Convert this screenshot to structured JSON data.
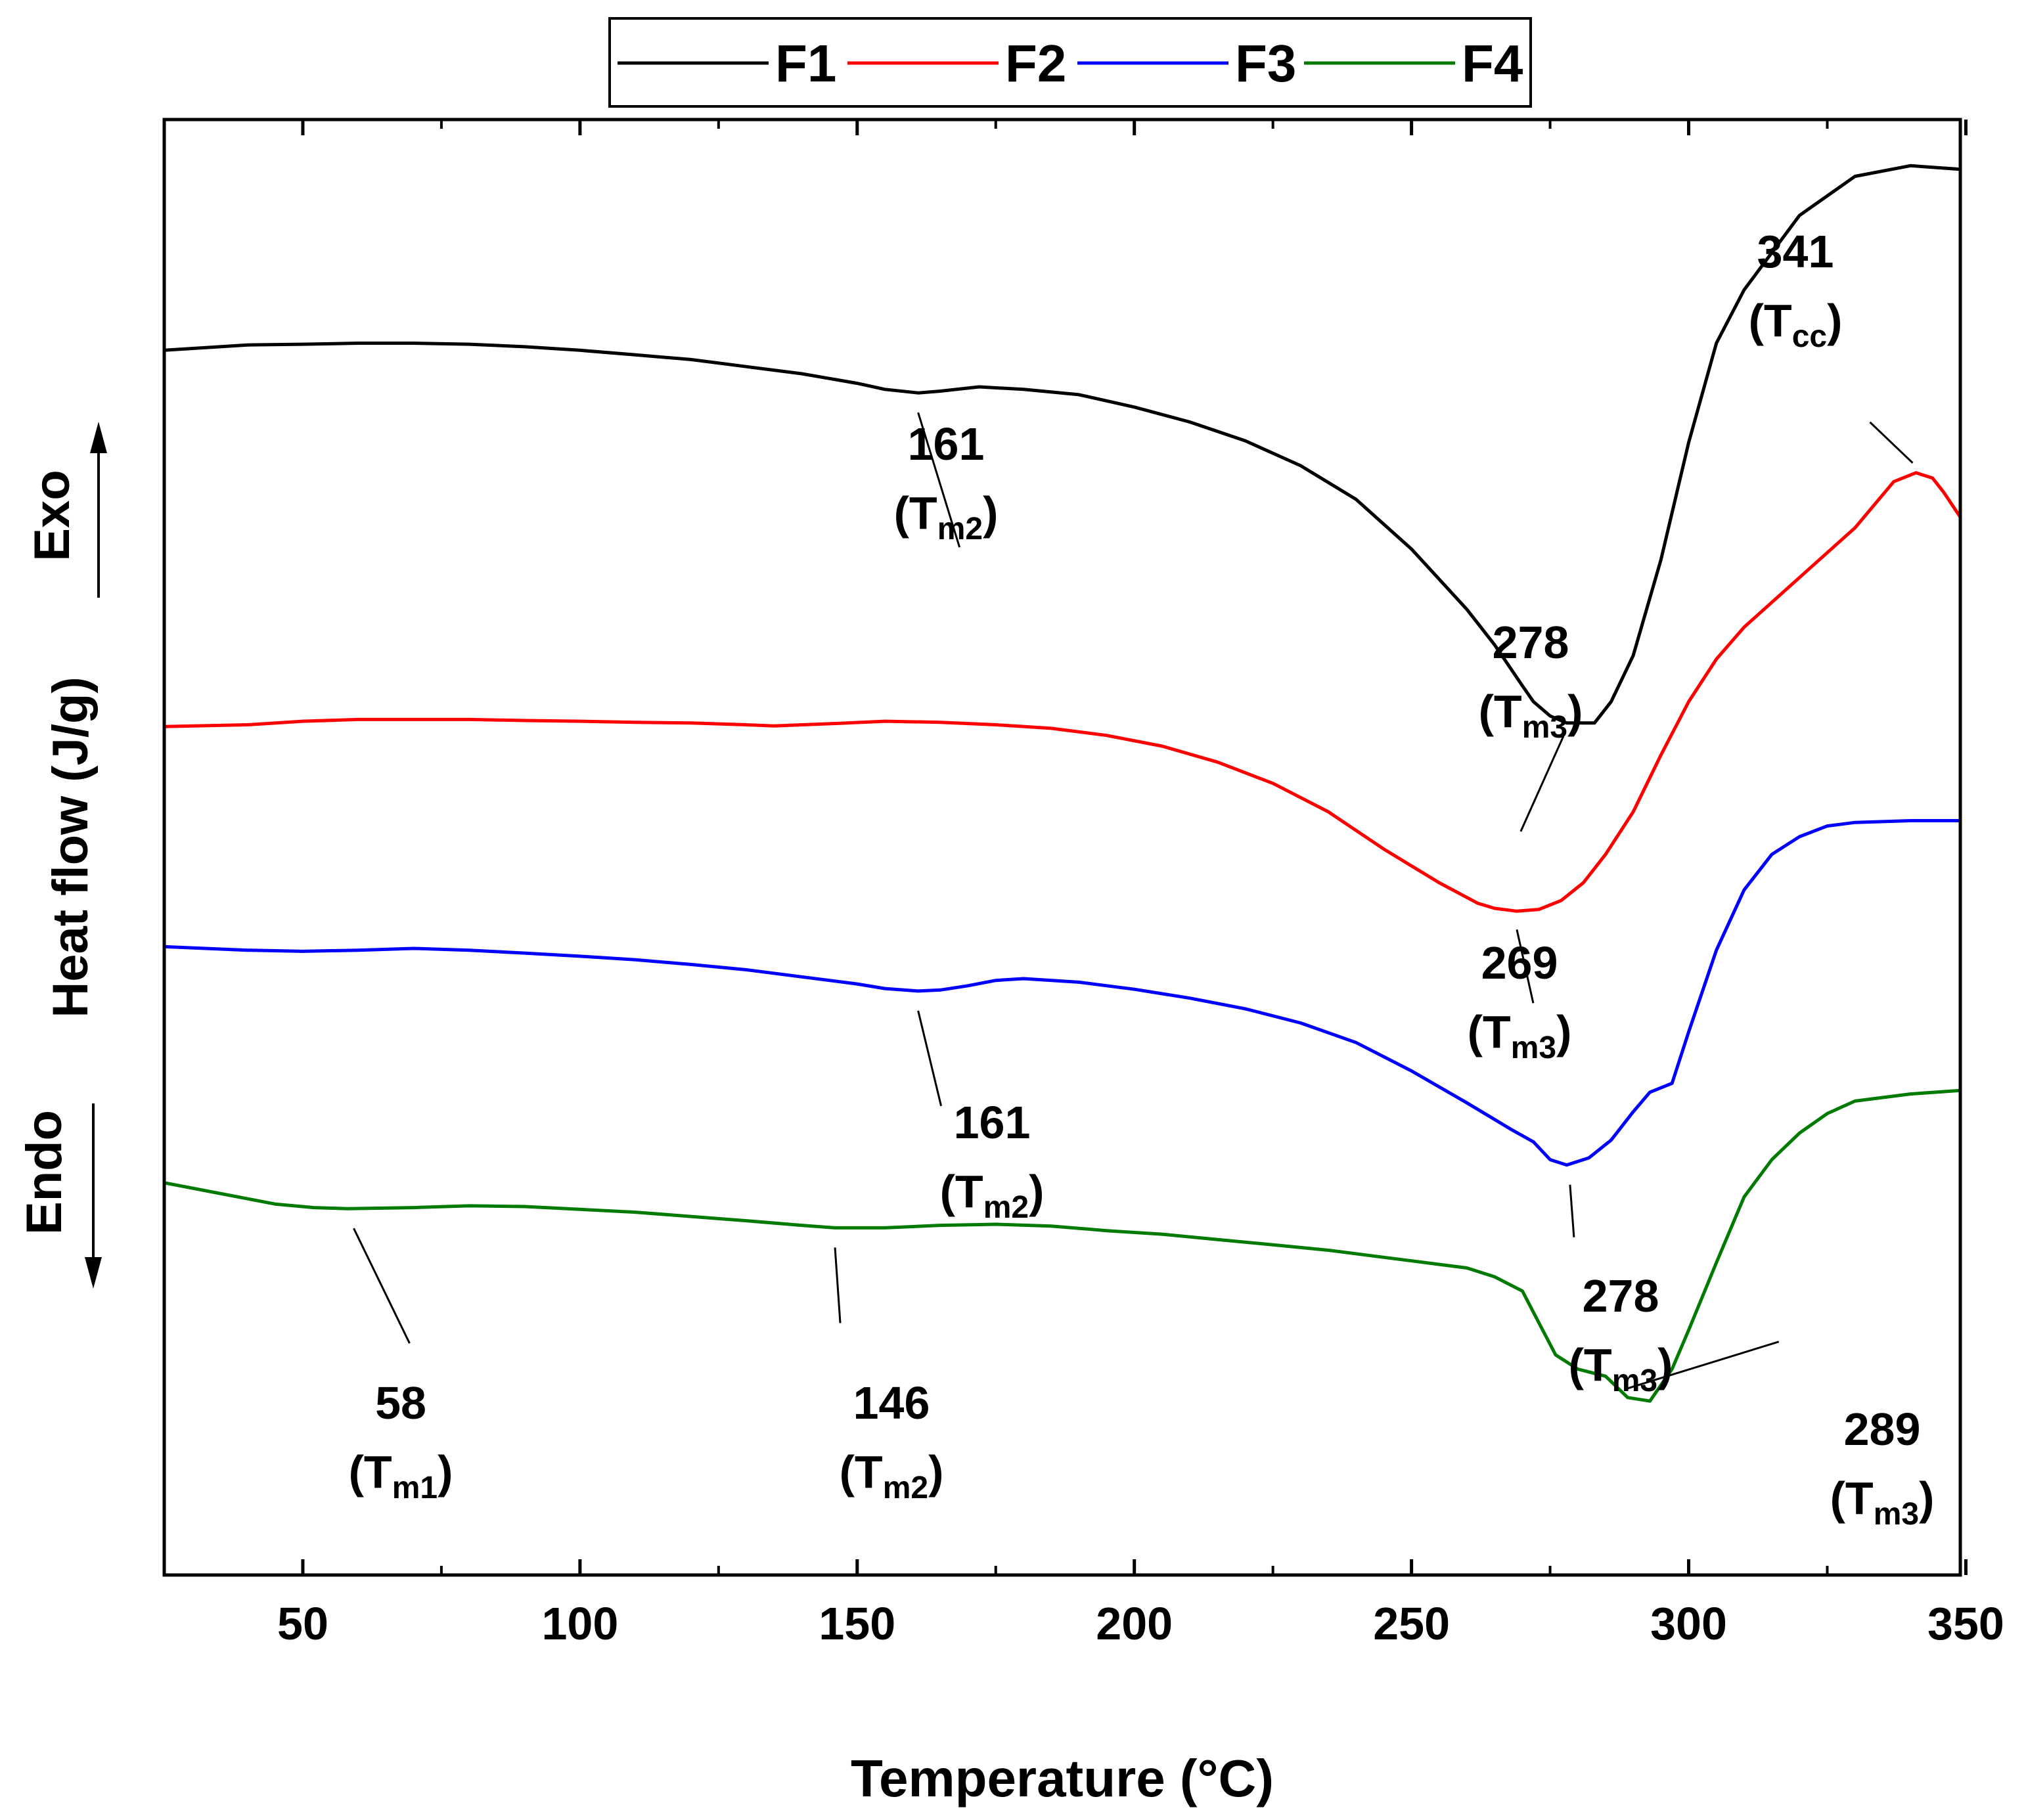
{
  "chart_data": {
    "type": "line",
    "title": "",
    "xlabel": "Temperature (°C)",
    "ylabel": "Heat flow (J/g)",
    "exo_label": "Exo",
    "endo_label": "Endo",
    "xlim": [
      25,
      349
    ],
    "x_ticks": [
      50,
      100,
      150,
      200,
      250,
      300,
      350
    ],
    "legend": {
      "position": "top-center",
      "entries": [
        "F1",
        "F2",
        "F3",
        "F4"
      ]
    },
    "series": [
      {
        "name": "F1",
        "color": "#000000",
        "points": [
          [
            25,
            0.5
          ],
          [
            40,
            0.485
          ],
          [
            50,
            0.483
          ],
          [
            60,
            0.48
          ],
          [
            70,
            0.48
          ],
          [
            80,
            0.483
          ],
          [
            90,
            0.49
          ],
          [
            100,
            0.5
          ],
          [
            110,
            0.513
          ],
          [
            120,
            0.526
          ],
          [
            130,
            0.546
          ],
          [
            140,
            0.566
          ],
          [
            150,
            0.593
          ],
          [
            155,
            0.61
          ],
          [
            161,
            0.62
          ],
          [
            165,
            0.615
          ],
          [
            172,
            0.603
          ],
          [
            180,
            0.61
          ],
          [
            190,
            0.625
          ],
          [
            200,
            0.66
          ],
          [
            210,
            0.702
          ],
          [
            220,
            0.755
          ],
          [
            230,
            0.825
          ],
          [
            240,
            0.92
          ],
          [
            250,
            1.06
          ],
          [
            260,
            1.23
          ],
          [
            265,
            1.33
          ],
          [
            270,
            1.445
          ],
          [
            272,
            1.49
          ],
          [
            275,
            1.53
          ],
          [
            278,
            1.55
          ],
          [
            283,
            1.55
          ],
          [
            286,
            1.49
          ],
          [
            290,
            1.36
          ],
          [
            295,
            1.09
          ],
          [
            300,
            0.76
          ],
          [
            305,
            0.48
          ],
          [
            310,
            0.33
          ],
          [
            320,
            0.12
          ],
          [
            330,
            0.01
          ],
          [
            340,
            -0.02
          ],
          [
            349,
            -0.01
          ]
        ]
      },
      {
        "name": "F2",
        "color": "#ff0000",
        "points": [
          [
            25,
            1.56
          ],
          [
            40,
            1.555
          ],
          [
            50,
            1.545
          ],
          [
            60,
            1.54
          ],
          [
            70,
            1.54
          ],
          [
            80,
            1.54
          ],
          [
            90,
            1.543
          ],
          [
            100,
            1.545
          ],
          [
            110,
            1.548
          ],
          [
            120,
            1.55
          ],
          [
            130,
            1.555
          ],
          [
            135,
            1.558
          ],
          [
            145,
            1.552
          ],
          [
            155,
            1.545
          ],
          [
            165,
            1.548
          ],
          [
            175,
            1.555
          ],
          [
            185,
            1.565
          ],
          [
            195,
            1.585
          ],
          [
            205,
            1.615
          ],
          [
            215,
            1.66
          ],
          [
            225,
            1.72
          ],
          [
            235,
            1.8
          ],
          [
            245,
            1.905
          ],
          [
            255,
            2.0
          ],
          [
            262,
            2.058
          ],
          [
            265,
            2.072
          ],
          [
            269,
            2.08
          ],
          [
            273,
            2.075
          ],
          [
            277,
            2.05
          ],
          [
            281,
            2.0
          ],
          [
            285,
            1.92
          ],
          [
            290,
            1.8
          ],
          [
            295,
            1.64
          ],
          [
            300,
            1.49
          ],
          [
            305,
            1.37
          ],
          [
            310,
            1.28
          ],
          [
            320,
            1.14
          ],
          [
            330,
            1.0
          ],
          [
            337,
            0.87
          ],
          [
            341,
            0.845
          ],
          [
            344,
            0.86
          ],
          [
            346,
            0.9
          ],
          [
            349,
            0.97
          ]
        ]
      },
      {
        "name": "F3",
        "color": "#0000ff",
        "points": [
          [
            25,
            2.18
          ],
          [
            40,
            2.19
          ],
          [
            50,
            2.193
          ],
          [
            60,
            2.19
          ],
          [
            70,
            2.185
          ],
          [
            80,
            2.19
          ],
          [
            90,
            2.198
          ],
          [
            100,
            2.207
          ],
          [
            110,
            2.217
          ],
          [
            120,
            2.23
          ],
          [
            130,
            2.245
          ],
          [
            140,
            2.265
          ],
          [
            150,
            2.285
          ],
          [
            155,
            2.298
          ],
          [
            161,
            2.305
          ],
          [
            165,
            2.302
          ],
          [
            170,
            2.29
          ],
          [
            175,
            2.275
          ],
          [
            180,
            2.27
          ],
          [
            190,
            2.28
          ],
          [
            200,
            2.3
          ],
          [
            210,
            2.325
          ],
          [
            220,
            2.355
          ],
          [
            230,
            2.395
          ],
          [
            240,
            2.45
          ],
          [
            250,
            2.53
          ],
          [
            260,
            2.62
          ],
          [
            268,
            2.695
          ],
          [
            272,
            2.73
          ],
          [
            275,
            2.78
          ],
          [
            278,
            2.795
          ],
          [
            282,
            2.775
          ],
          [
            286,
            2.725
          ],
          [
            290,
            2.645
          ],
          [
            293,
            2.59
          ],
          [
            297,
            2.565
          ],
          [
            300,
            2.42
          ],
          [
            305,
            2.19
          ],
          [
            310,
            2.02
          ],
          [
            315,
            1.92
          ],
          [
            320,
            1.87
          ],
          [
            325,
            1.84
          ],
          [
            330,
            1.83
          ],
          [
            340,
            1.825
          ],
          [
            349,
            1.825
          ]
        ]
      },
      {
        "name": "F4",
        "color": "#007a00",
        "points": [
          [
            25,
            2.845
          ],
          [
            35,
            2.875
          ],
          [
            45,
            2.905
          ],
          [
            52,
            2.915
          ],
          [
            58,
            2.918
          ],
          [
            70,
            2.915
          ],
          [
            80,
            2.91
          ],
          [
            90,
            2.912
          ],
          [
            100,
            2.92
          ],
          [
            110,
            2.928
          ],
          [
            120,
            2.94
          ],
          [
            130,
            2.952
          ],
          [
            140,
            2.965
          ],
          [
            146,
            2.972
          ],
          [
            155,
            2.972
          ],
          [
            165,
            2.965
          ],
          [
            175,
            2.962
          ],
          [
            185,
            2.967
          ],
          [
            195,
            2.98
          ],
          [
            205,
            2.99
          ],
          [
            215,
            3.005
          ],
          [
            225,
            3.02
          ],
          [
            235,
            3.035
          ],
          [
            245,
            3.055
          ],
          [
            255,
            3.075
          ],
          [
            260,
            3.085
          ],
          [
            265,
            3.11
          ],
          [
            270,
            3.15
          ],
          [
            273,
            3.24
          ],
          [
            276,
            3.33
          ],
          [
            280,
            3.37
          ],
          [
            285,
            3.39
          ],
          [
            289,
            3.45
          ],
          [
            293,
            3.46
          ],
          [
            297,
            3.37
          ],
          [
            300,
            3.26
          ],
          [
            305,
            3.07
          ],
          [
            310,
            2.885
          ],
          [
            315,
            2.78
          ],
          [
            320,
            2.705
          ],
          [
            325,
            2.65
          ],
          [
            330,
            2.615
          ],
          [
            340,
            2.595
          ],
          [
            349,
            2.585
          ]
        ]
      }
    ],
    "annotations": [
      {
        "series": "F1",
        "value": "161",
        "symbol": "T",
        "sub": "m2",
        "x": 161
      },
      {
        "series": "F1",
        "value": "278",
        "symbol": "T",
        "sub": "m3",
        "x": 278
      },
      {
        "series": "F2",
        "value": "341",
        "symbol": "T",
        "sub": "cc",
        "x": 341
      },
      {
        "series": "F2",
        "value": "269",
        "symbol": "T",
        "sub": "m3",
        "x": 269
      },
      {
        "series": "F3",
        "value": "161",
        "symbol": "T",
        "sub": "m2",
        "x": 161
      },
      {
        "series": "F3",
        "value": "278",
        "symbol": "T",
        "sub": "m3",
        "x": 278
      },
      {
        "series": "F4",
        "value": "58",
        "symbol": "T",
        "sub": "m1",
        "x": 58
      },
      {
        "series": "F4",
        "value": "146",
        "symbol": "T",
        "sub": "m2",
        "x": 146
      },
      {
        "series": "F4",
        "value": "289",
        "symbol": "T",
        "sub": "m3",
        "x": 289
      }
    ]
  }
}
